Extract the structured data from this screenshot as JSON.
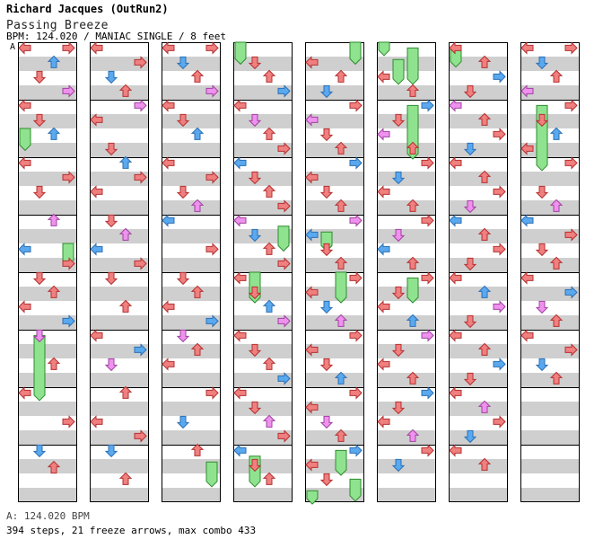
{
  "header": {
    "artist_line": "Richard Jacques (OutRun2)",
    "song_title": "Passing Breeze",
    "meta_line": "BPM: 124.020 / MANIAC SINGLE / 8 feet",
    "bpm_marker": "A"
  },
  "footer": {
    "bpm_line": "A: 124.020 BPM",
    "stats_line": "394 steps, 21 freeze arrows, max combo 433"
  },
  "chart_data": {
    "type": "table",
    "columns": 8,
    "measures_per_column": 8,
    "lanes": [
      "left",
      "down",
      "up",
      "right"
    ],
    "colors": {
      "quarter": "#f07f7f",
      "eighth": "#5aa9ef",
      "sixteenth": "#ee92ee",
      "freeze": "#8fe38f",
      "stripe": "#cfcfcf"
    },
    "columns_notes": [
      [
        [
          "L",
          0.1
        ],
        [
          "R",
          0.1
        ],
        [
          "U",
          0.35
        ],
        [
          "D",
          0.6
        ],
        [
          "R",
          0.85
        ],
        [
          "L",
          1.1
        ],
        [
          "D",
          1.35
        ],
        [
          "U",
          1.6
        ],
        [
          "L",
          2.1
        ],
        [
          "R",
          2.35
        ],
        [
          "D",
          2.6
        ],
        [
          "U",
          3.1
        ],
        [
          "L",
          3.6
        ],
        [
          "R",
          3.85
        ],
        [
          "D",
          4.1
        ],
        [
          "U",
          4.35
        ],
        [
          "L",
          4.6
        ],
        [
          "R",
          4.85
        ],
        [
          "D",
          5.1
        ],
        [
          "U",
          5.6
        ],
        [
          "L",
          6.1
        ],
        [
          "R",
          6.6
        ],
        [
          "D",
          7.1
        ],
        [
          "U",
          7.4
        ]
      ],
      [
        [
          "L",
          0.1
        ],
        [
          "R",
          0.35
        ],
        [
          "D",
          0.6
        ],
        [
          "U",
          0.85
        ],
        [
          "R",
          1.1
        ],
        [
          "L",
          1.35
        ],
        [
          "D",
          1.85
        ],
        [
          "U",
          2.1
        ],
        [
          "R",
          2.35
        ],
        [
          "L",
          2.6
        ],
        [
          "D",
          3.1
        ],
        [
          "U",
          3.35
        ],
        [
          "L",
          3.6
        ],
        [
          "R",
          3.85
        ],
        [
          "D",
          4.1
        ],
        [
          "U",
          4.6
        ],
        [
          "L",
          5.1
        ],
        [
          "R",
          5.35
        ],
        [
          "D",
          5.6
        ],
        [
          "U",
          6.1
        ],
        [
          "L",
          6.6
        ],
        [
          "R",
          6.85
        ],
        [
          "D",
          7.1
        ],
        [
          "U",
          7.6
        ]
      ],
      [
        [
          "L",
          0.1
        ],
        [
          "R",
          0.1
        ],
        [
          "D",
          0.35
        ],
        [
          "U",
          0.6
        ],
        [
          "R",
          0.85
        ],
        [
          "L",
          1.1
        ],
        [
          "D",
          1.35
        ],
        [
          "U",
          1.6
        ],
        [
          "L",
          2.1
        ],
        [
          "R",
          2.35
        ],
        [
          "D",
          2.6
        ],
        [
          "U",
          2.85
        ],
        [
          "L",
          3.1
        ],
        [
          "R",
          3.6
        ],
        [
          "D",
          4.1
        ],
        [
          "U",
          4.35
        ],
        [
          "L",
          4.6
        ],
        [
          "R",
          4.85
        ],
        [
          "D",
          5.1
        ],
        [
          "U",
          5.35
        ],
        [
          "L",
          5.6
        ],
        [
          "R",
          6.1
        ],
        [
          "D",
          6.6
        ],
        [
          "U",
          7.1
        ]
      ],
      [
        [
          "D",
          0.35
        ],
        [
          "U",
          0.6
        ],
        [
          "R",
          0.85
        ],
        [
          "L",
          1.1
        ],
        [
          "D",
          1.35
        ],
        [
          "U",
          1.6
        ],
        [
          "R",
          1.85
        ],
        [
          "L",
          2.1
        ],
        [
          "D",
          2.35
        ],
        [
          "U",
          2.6
        ],
        [
          "R",
          2.85
        ],
        [
          "L",
          3.1
        ],
        [
          "D",
          3.35
        ],
        [
          "U",
          3.6
        ],
        [
          "R",
          3.85
        ],
        [
          "L",
          4.1
        ],
        [
          "D",
          4.35
        ],
        [
          "U",
          4.6
        ],
        [
          "R",
          4.85
        ],
        [
          "L",
          5.1
        ],
        [
          "D",
          5.35
        ],
        [
          "U",
          5.6
        ],
        [
          "R",
          5.85
        ],
        [
          "L",
          6.1
        ],
        [
          "D",
          6.35
        ],
        [
          "U",
          6.6
        ],
        [
          "R",
          6.85
        ],
        [
          "L",
          7.1
        ],
        [
          "D",
          7.35
        ],
        [
          "U",
          7.6
        ]
      ],
      [
        [
          "L",
          0.35
        ],
        [
          "U",
          0.6
        ],
        [
          "D",
          0.85
        ],
        [
          "R",
          1.1
        ],
        [
          "L",
          1.35
        ],
        [
          "D",
          1.6
        ],
        [
          "U",
          1.85
        ],
        [
          "R",
          2.1
        ],
        [
          "L",
          2.35
        ],
        [
          "D",
          2.6
        ],
        [
          "U",
          2.85
        ],
        [
          "R",
          3.1
        ],
        [
          "L",
          3.35
        ],
        [
          "D",
          3.6
        ],
        [
          "U",
          3.85
        ],
        [
          "R",
          4.1
        ],
        [
          "L",
          4.35
        ],
        [
          "D",
          4.6
        ],
        [
          "U",
          4.85
        ],
        [
          "R",
          5.1
        ],
        [
          "L",
          5.35
        ],
        [
          "D",
          5.6
        ],
        [
          "U",
          5.85
        ],
        [
          "R",
          6.1
        ],
        [
          "L",
          6.35
        ],
        [
          "D",
          6.6
        ],
        [
          "U",
          6.85
        ],
        [
          "R",
          7.1
        ],
        [
          "L",
          7.35
        ],
        [
          "D",
          7.6
        ]
      ],
      [
        [
          "L",
          0.6
        ],
        [
          "U",
          0.85
        ],
        [
          "R",
          1.1
        ],
        [
          "D",
          1.35
        ],
        [
          "L",
          1.6
        ],
        [
          "U",
          1.85
        ],
        [
          "R",
          2.1
        ],
        [
          "D",
          2.35
        ],
        [
          "L",
          2.6
        ],
        [
          "U",
          2.85
        ],
        [
          "R",
          3.1
        ],
        [
          "D",
          3.35
        ],
        [
          "L",
          3.6
        ],
        [
          "U",
          3.85
        ],
        [
          "R",
          4.1
        ],
        [
          "D",
          4.35
        ],
        [
          "L",
          4.6
        ],
        [
          "U",
          4.85
        ],
        [
          "R",
          5.1
        ],
        [
          "D",
          5.35
        ],
        [
          "L",
          5.6
        ],
        [
          "U",
          5.85
        ],
        [
          "R",
          6.1
        ],
        [
          "D",
          6.35
        ],
        [
          "L",
          6.6
        ],
        [
          "U",
          6.85
        ],
        [
          "R",
          7.1
        ],
        [
          "D",
          7.35
        ]
      ],
      [
        [
          "L",
          0.1
        ],
        [
          "U",
          0.35
        ],
        [
          "R",
          0.6
        ],
        [
          "D",
          0.85
        ],
        [
          "L",
          1.1
        ],
        [
          "U",
          1.35
        ],
        [
          "R",
          1.6
        ],
        [
          "D",
          1.85
        ],
        [
          "L",
          2.1
        ],
        [
          "U",
          2.35
        ],
        [
          "R",
          2.6
        ],
        [
          "D",
          2.85
        ],
        [
          "L",
          3.1
        ],
        [
          "U",
          3.35
        ],
        [
          "R",
          3.6
        ],
        [
          "D",
          3.85
        ],
        [
          "L",
          4.1
        ],
        [
          "U",
          4.35
        ],
        [
          "R",
          4.6
        ],
        [
          "D",
          4.85
        ],
        [
          "L",
          5.1
        ],
        [
          "U",
          5.35
        ],
        [
          "R",
          5.6
        ],
        [
          "D",
          5.85
        ],
        [
          "L",
          6.1
        ],
        [
          "U",
          6.35
        ],
        [
          "R",
          6.6
        ],
        [
          "D",
          6.85
        ],
        [
          "L",
          7.1
        ],
        [
          "U",
          7.35
        ]
      ],
      [
        [
          "L",
          0.1
        ],
        [
          "R",
          0.1
        ],
        [
          "D",
          0.35
        ],
        [
          "U",
          0.6
        ],
        [
          "L",
          0.85
        ],
        [
          "R",
          1.1
        ],
        [
          "D",
          1.35
        ],
        [
          "U",
          1.6
        ],
        [
          "L",
          1.85
        ],
        [
          "R",
          2.1
        ],
        [
          "D",
          2.6
        ],
        [
          "U",
          2.85
        ],
        [
          "L",
          3.1
        ],
        [
          "R",
          3.35
        ],
        [
          "D",
          3.6
        ],
        [
          "U",
          3.85
        ],
        [
          "L",
          4.1
        ],
        [
          "R",
          4.35
        ],
        [
          "D",
          4.6
        ],
        [
          "U",
          4.85
        ],
        [
          "L",
          5.1
        ],
        [
          "R",
          5.35
        ],
        [
          "D",
          5.6
        ],
        [
          "U",
          5.85
        ]
      ]
    ],
    "freezes": [
      [
        0,
        0,
        1.5,
        1.85
      ],
      [
        0,
        1,
        5.1,
        6.2
      ],
      [
        0,
        3,
        3.5,
        3.85
      ],
      [
        2,
        3,
        7.3,
        7.7
      ],
      [
        3,
        0,
        0,
        0.35
      ],
      [
        3,
        1,
        4.0,
        4.5
      ],
      [
        3,
        3,
        3.2,
        3.6
      ],
      [
        3,
        1,
        7.2,
        7.7
      ],
      [
        4,
        3,
        0,
        0.35
      ],
      [
        4,
        1,
        3.3,
        3.6
      ],
      [
        4,
        2,
        4.0,
        4.5
      ],
      [
        4,
        2,
        7.1,
        7.5
      ],
      [
        4,
        0,
        7.8,
        8.0
      ],
      [
        4,
        3,
        7.6,
        7.95
      ],
      [
        5,
        0,
        0,
        0.2
      ],
      [
        5,
        2,
        0.1,
        0.7
      ],
      [
        5,
        1,
        0.3,
        0.7
      ],
      [
        5,
        2,
        1.1,
        2.0
      ],
      [
        5,
        2,
        4.1,
        4.5
      ],
      [
        6,
        0,
        0.1,
        0.4
      ],
      [
        7,
        1,
        1.1,
        2.2
      ]
    ]
  }
}
